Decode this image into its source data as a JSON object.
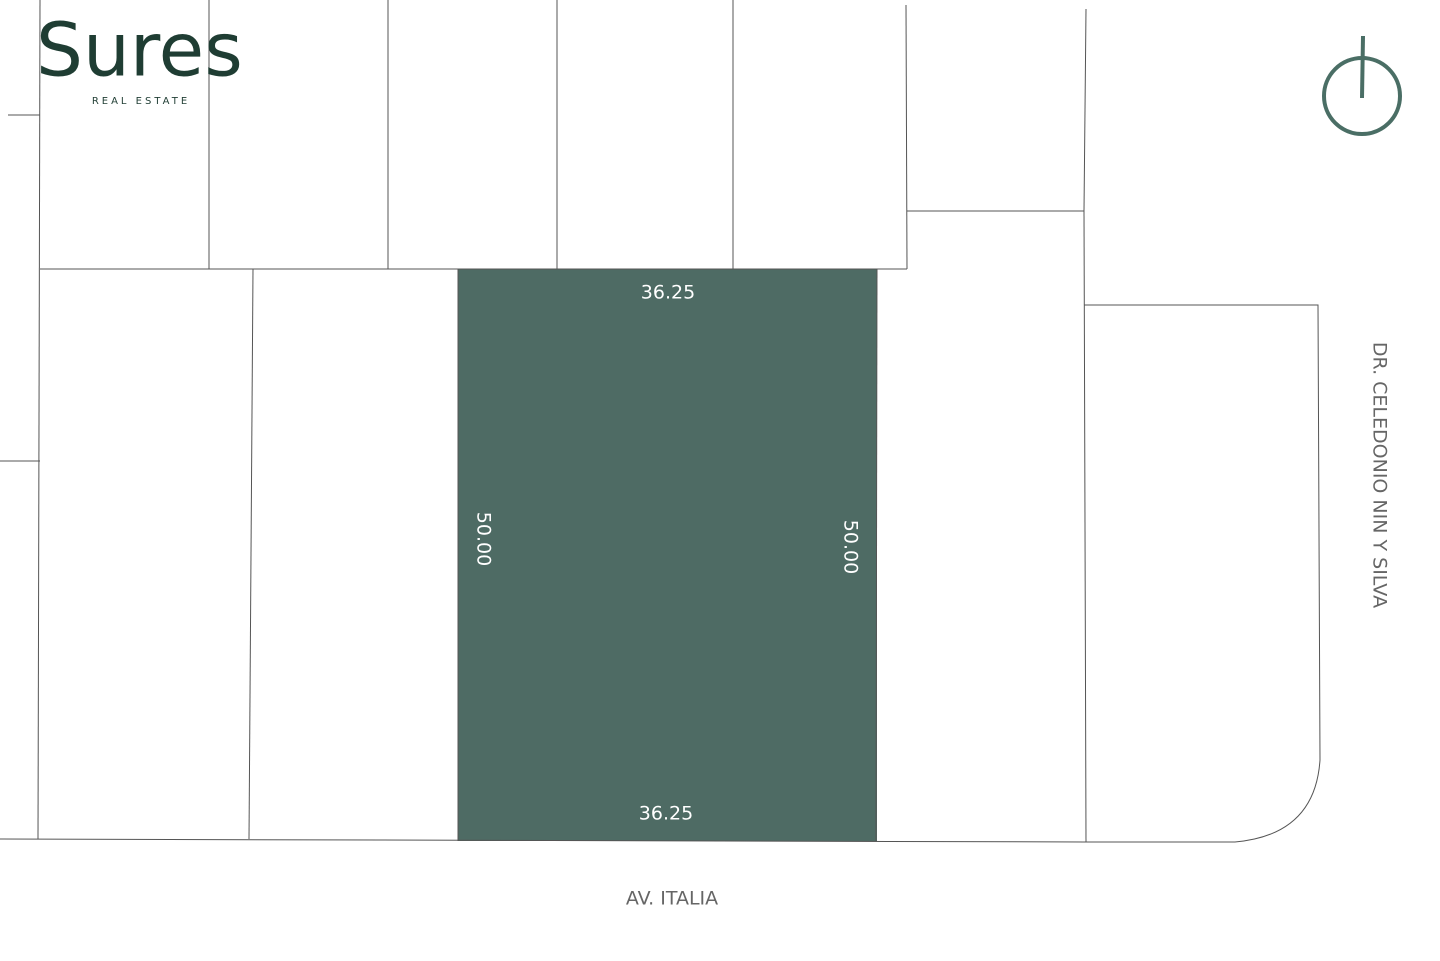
{
  "logo": {
    "name": "Sures",
    "tagline": "REAL ESTATE"
  },
  "lot": {
    "top": "36.25",
    "bottom": "36.25",
    "left": "50.00",
    "right": "50.00"
  },
  "streets": {
    "front": "AV. ITALIA",
    "side": "DR. CELEDONIO NIN Y SILVA"
  }
}
